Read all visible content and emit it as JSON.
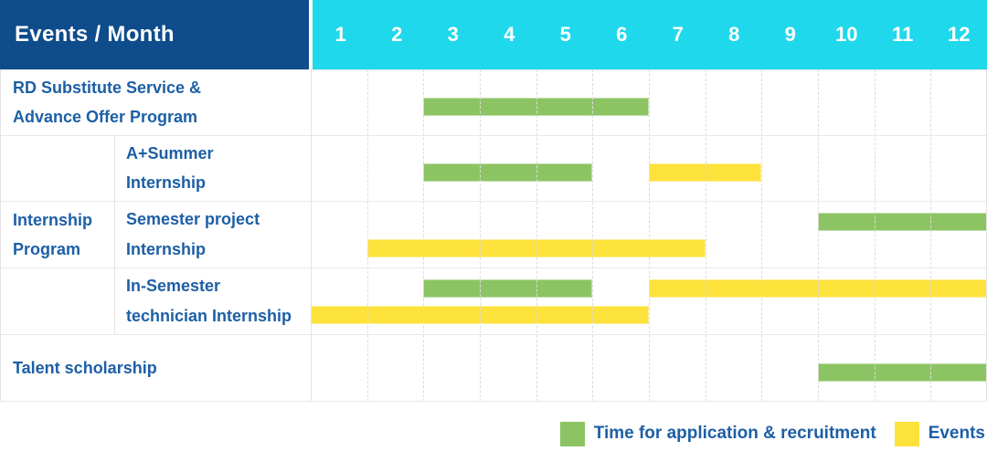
{
  "header": {
    "title": "Events / Month",
    "months": [
      "1",
      "2",
      "3",
      "4",
      "5",
      "6",
      "7",
      "8",
      "9",
      "10",
      "11",
      "12"
    ]
  },
  "labels": {
    "row1": "RD Substitute Service &\nAdvance Offer Program",
    "group": "Internship\nProgram",
    "sub1": "A+Summer\nInternship",
    "sub2": "Semester project\nInternship",
    "sub3": "In-Semester\ntechnician Internship",
    "row5": "Talent scholarship"
  },
  "legend": {
    "items": [
      {
        "swatch": "green",
        "label": "Time for application & recruitment"
      },
      {
        "swatch": "yellow",
        "label": "Events"
      }
    ]
  },
  "colors": {
    "header_bg": "#0e4c8b",
    "months_bg": "#1fd8ec",
    "label_text": "#1d5fa6",
    "green": "#8cc464",
    "yellow": "#fde23b"
  },
  "chart_data": {
    "type": "bar",
    "variant": "gantt-schedule",
    "title": "Events / Month",
    "x_axis": {
      "label": "Month",
      "categories": [
        1,
        2,
        3,
        4,
        5,
        6,
        7,
        8,
        9,
        10,
        11,
        12
      ],
      "range": [
        1,
        12
      ]
    },
    "legend_entries": [
      "Time for application & recruitment",
      "Events"
    ],
    "series_colors": {
      "Time for application & recruitment": "#8cc464",
      "Events": "#fde23b"
    },
    "grid": "dashed vertical month separators, light horizontal row lines",
    "rows": [
      {
        "group": null,
        "label": "RD Substitute Service & Advance Offer Program",
        "bars": [
          {
            "series": "Time for application & recruitment",
            "color": "green",
            "start_month": 3,
            "end_month": 6,
            "slot": "center"
          }
        ]
      },
      {
        "group": "Internship Program",
        "label": "A+Summer Internship",
        "bars": [
          {
            "series": "Time for application & recruitment",
            "color": "green",
            "start_month": 3,
            "end_month": 5,
            "slot": "center"
          },
          {
            "series": "Events",
            "color": "yellow",
            "start_month": 7,
            "end_month": 8,
            "slot": "center"
          }
        ]
      },
      {
        "group": "Internship Program",
        "label": "Semester project Internship",
        "bars": [
          {
            "series": "Time for application & recruitment",
            "color": "green",
            "start_month": 10,
            "end_month": 12,
            "slot": "upper"
          },
          {
            "series": "Events",
            "color": "yellow",
            "start_month": 2,
            "end_month": 7,
            "slot": "lower"
          }
        ]
      },
      {
        "group": "Internship Program",
        "label": "In-Semester technician Internship",
        "bars": [
          {
            "series": "Time for application & recruitment",
            "color": "green",
            "start_month": 3,
            "end_month": 5,
            "slot": "upper"
          },
          {
            "series": "Events",
            "color": "yellow",
            "start_month": 7,
            "end_month": 12,
            "slot": "upper"
          },
          {
            "series": "Events",
            "color": "yellow",
            "start_month": 1,
            "end_month": 6,
            "slot": "lower"
          }
        ]
      },
      {
        "group": null,
        "label": "Talent scholarship",
        "bars": [
          {
            "series": "Time for application & recruitment",
            "color": "green",
            "start_month": 10,
            "end_month": 12,
            "slot": "center"
          }
        ]
      }
    ]
  }
}
